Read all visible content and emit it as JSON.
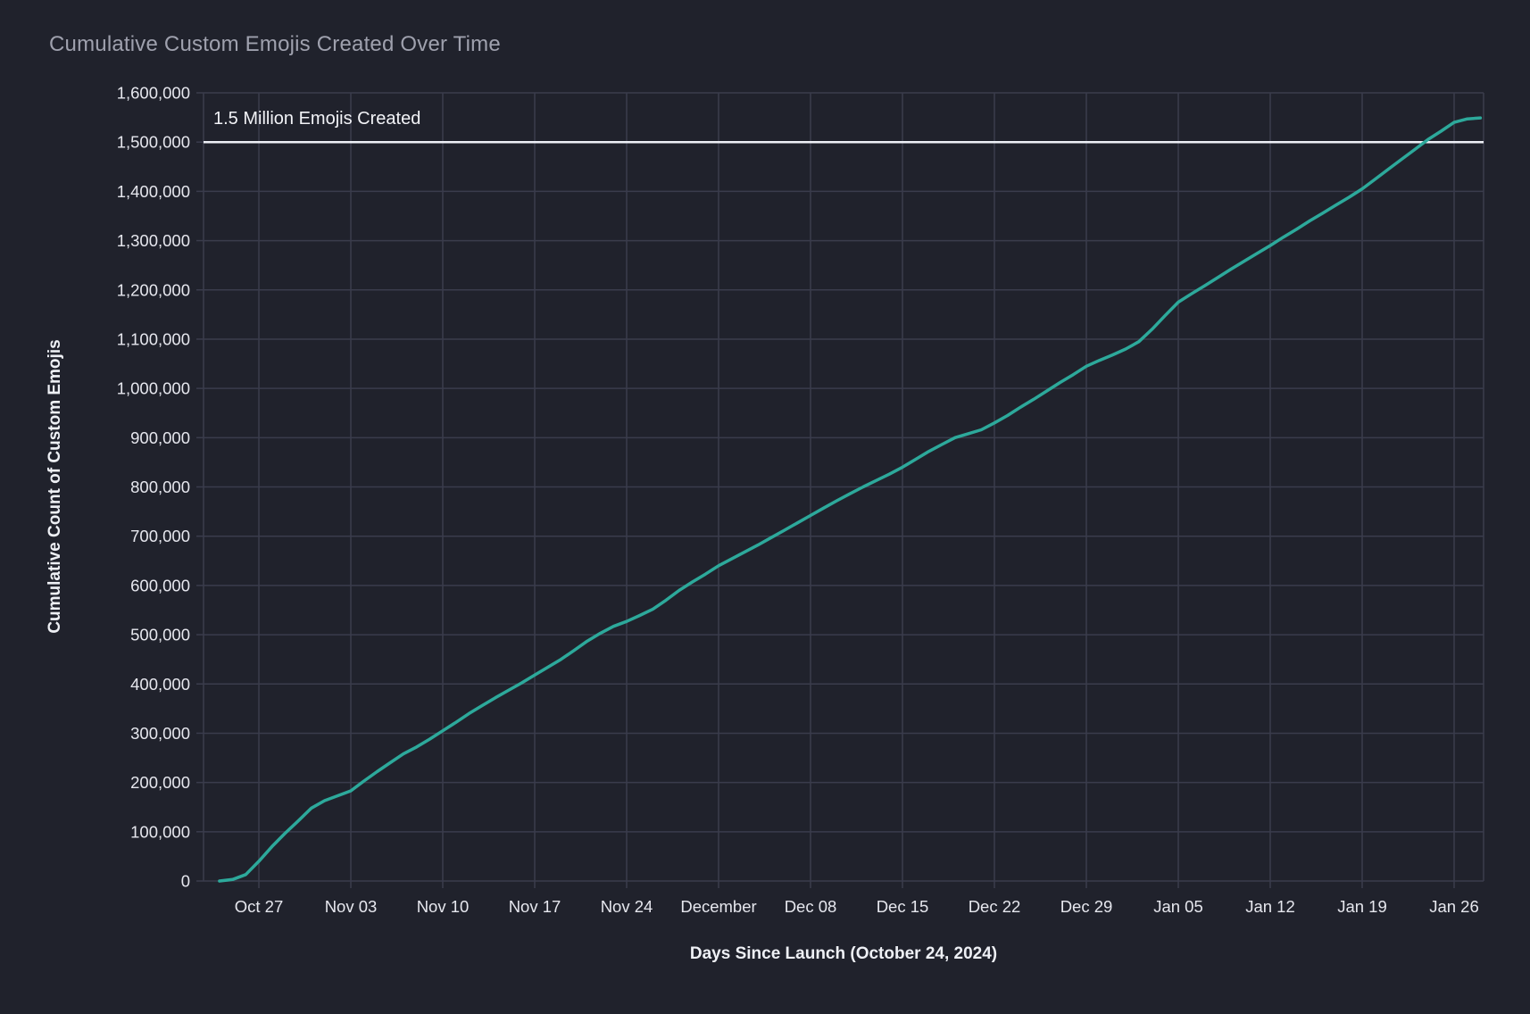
{
  "page": {
    "background": "#20222c"
  },
  "chart_data": {
    "type": "line",
    "title": "Cumulative Custom Emojis Created Over Time",
    "xlabel": "Days Since Launch (October 24, 2024)",
    "ylabel": "Cumulative Count of Custom Emojis",
    "launch_date": "October 24, 2024",
    "x_tick_labels": [
      "Oct 27",
      "Nov 03",
      "Nov 10",
      "Nov 17",
      "Nov 24",
      "December",
      "Dec 08",
      "Dec 15",
      "Dec 22",
      "Dec 29",
      "Jan 05",
      "Jan 12",
      "Jan 19",
      "Jan 26"
    ],
    "x_tick_days": [
      3,
      10,
      17,
      24,
      31,
      38,
      45,
      52,
      59,
      66,
      73,
      80,
      87,
      94
    ],
    "y_tick_values": [
      0,
      100000,
      200000,
      300000,
      400000,
      500000,
      600000,
      700000,
      800000,
      900000,
      1000000,
      1100000,
      1200000,
      1300000,
      1400000,
      1500000,
      1600000
    ],
    "y_tick_labels": [
      "0",
      "100,000",
      "200,000",
      "300,000",
      "400,000",
      "500,000",
      "600,000",
      "700,000",
      "800,000",
      "900,000",
      "1,000,000",
      "1,100,000",
      "1,200,000",
      "1,300,000",
      "1,400,000",
      "1,500,000",
      "1,600,000"
    ],
    "ylim": [
      0,
      1600000
    ],
    "xlim_days": [
      -1.2,
      96.2
    ],
    "grid": true,
    "legend": "none",
    "reference_line": {
      "value": 1500000,
      "label": "1.5 Million Emojis Created",
      "color": "#eef0f6"
    },
    "series": [
      {
        "name": "Cumulative Custom Emojis",
        "color": "#2da99b",
        "x_days": [
          0,
          1,
          2,
          3,
          4,
          5,
          6,
          7,
          8,
          9,
          10,
          11,
          12,
          13,
          14,
          15,
          16,
          17,
          18,
          19,
          20,
          21,
          22,
          23,
          24,
          25,
          26,
          27,
          28,
          29,
          30,
          31,
          32,
          33,
          34,
          35,
          36,
          37,
          38,
          39,
          40,
          41,
          42,
          43,
          44,
          45,
          46,
          47,
          48,
          49,
          50,
          51,
          52,
          53,
          54,
          55,
          56,
          57,
          58,
          59,
          60,
          61,
          62,
          63,
          64,
          65,
          66,
          67,
          68,
          69,
          70,
          71,
          72,
          73,
          74,
          75,
          76,
          77,
          78,
          79,
          80,
          81,
          82,
          83,
          84,
          85,
          86,
          87,
          88,
          89,
          90,
          91,
          92,
          93,
          94,
          95,
          96
        ],
        "values": [
          0,
          3000,
          13000,
          40000,
          70000,
          97000,
          122000,
          148000,
          163000,
          173000,
          183000,
          203000,
          222000,
          240000,
          258000,
          272000,
          288000,
          305000,
          322000,
          340000,
          356000,
          372000,
          387000,
          402000,
          418000,
          434000,
          450000,
          468000,
          487000,
          503000,
          517000,
          527000,
          539000,
          552000,
          570000,
          590000,
          607000,
          623000,
          640000,
          654000,
          668000,
          682000,
          697000,
          712000,
          727000,
          742000,
          757000,
          772000,
          786000,
          800000,
          813000,
          826000,
          840000,
          856000,
          872000,
          886000,
          900000,
          908000,
          916000,
          930000,
          945000,
          962000,
          978000,
          995000,
          1012000,
          1028000,
          1045000,
          1057000,
          1068000,
          1080000,
          1095000,
          1120000,
          1148000,
          1175000,
          1192000,
          1208000,
          1225000,
          1242000,
          1258000,
          1274000,
          1290000,
          1307000,
          1323000,
          1340000,
          1356000,
          1372000,
          1388000,
          1405000,
          1425000,
          1445000,
          1465000,
          1485000,
          1505000,
          1522000,
          1540000,
          1547000,
          1549000
        ]
      }
    ],
    "colors": {
      "background": "#20222c",
      "gridline": "#3a3c4c",
      "tick_label": "#e6e7ee",
      "title": "#9fa1ae",
      "axis_title": "#eef0f5",
      "line": "#2da99b",
      "reference_line": "#eef0f6"
    }
  }
}
